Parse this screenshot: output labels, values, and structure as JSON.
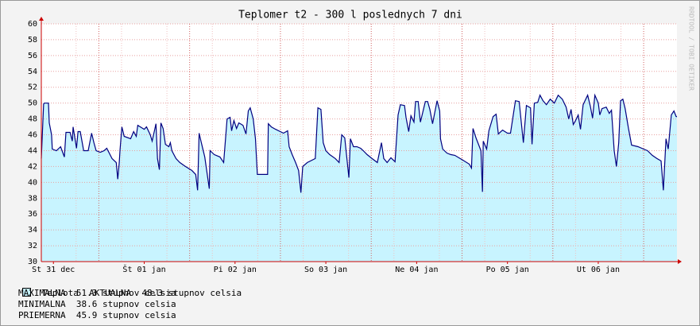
{
  "chart_data": {
    "type": "area",
    "title": "Teplomer t2 - 300 l poslednych 7 dni",
    "watermark": "RRDTOOL / TOBI OETIKER",
    "xlim": [
      0,
      168
    ],
    "xticks": [
      {
        "value": 3.2,
        "label": "St 31 dec"
      },
      {
        "value": 27.2,
        "label": "Št 01 jan"
      },
      {
        "value": 51.2,
        "label": "Pi 02 jan"
      },
      {
        "value": 75.2,
        "label": "So 03 jan"
      },
      {
        "value": 99.2,
        "label": "Ne 04 jan"
      },
      {
        "value": 123.2,
        "label": "Po 05 jan"
      },
      {
        "value": 147.2,
        "label": "Ut 06 jan"
      }
    ],
    "ylim": [
      30,
      60
    ],
    "yticks": [
      30,
      32,
      34,
      36,
      38,
      40,
      42,
      44,
      46,
      48,
      50,
      52,
      54,
      56,
      58,
      60
    ],
    "grid": true,
    "series": [
      {
        "name": "Teplota",
        "color": "#000080",
        "fill": "#c8f4ff",
        "x": [
          0,
          0.6,
          0.8,
          1.9,
          2.1,
          2.7,
          2.9,
          4.0,
          5.1,
          6.1,
          6.5,
          7.6,
          8.2,
          8.4,
          9.3,
          9.7,
          10.3,
          11.2,
          12.4,
          13.3,
          13.9,
          14.5,
          15.6,
          16.6,
          17.3,
          18.7,
          19.8,
          20.2,
          20.6,
          20.8,
          21.3,
          21.9,
          23.6,
          24.4,
          25.1,
          25.5,
          27.2,
          27.8,
          28.8,
          29.3,
          30.3,
          30.7,
          31.2,
          31.6,
          32.2,
          32.8,
          33.7,
          34.1,
          34.5,
          35.6,
          36.6,
          38.1,
          39.8,
          40.8,
          41.3,
          41.7,
          42.3,
          43.2,
          44.4,
          44.6,
          45.7,
          47.2,
          48.2,
          49.1,
          49.9,
          50.3,
          50.9,
          51.6,
          52.2,
          52.6,
          53.3,
          54.1,
          54.7,
          55.2,
          56.0,
          56.6,
          57.1,
          58.7,
          59.8,
          60.0,
          60.8,
          61.9,
          64.0,
          65.1,
          65.5,
          66.3,
          67.2,
          68.0,
          68.6,
          69.1,
          70.3,
          72.4,
          73.1,
          73.9,
          74.5,
          75.2,
          76.2,
          77.7,
          78.7,
          79.4,
          80.2,
          81.3,
          81.7,
          82.5,
          83.4,
          84.4,
          85.1,
          86.1,
          87.4,
          88.8,
          89.9,
          90.5,
          91.4,
          92.4,
          93.5,
          94.3,
          94.9,
          96.0,
          96.4,
          97.1,
          97.7,
          98.5,
          98.9,
          99.6,
          100.2,
          100.8,
          101.5,
          102.1,
          102.7,
          103.4,
          104.6,
          105.3,
          105.5,
          106.1,
          107.2,
          108.2,
          109.3,
          111.4,
          113.1,
          113.7,
          114.1,
          114.9,
          116.2,
          116.6,
          116.8,
          117.7,
          118.3,
          119.4,
          120.2,
          120.8,
          121.9,
          123.2,
          124.0,
          125.3,
          126.3,
          127.4,
          128.2,
          129.3,
          129.7,
          130.3,
          131.2,
          131.8,
          132.6,
          133.5,
          134.5,
          135.6,
          136.6,
          137.7,
          138.7,
          139.4,
          140.0,
          140.6,
          141.1,
          141.9,
          142.5,
          143.2,
          144.4,
          145.1,
          145.7,
          146.3,
          147.2,
          147.6,
          148.2,
          149.3,
          150.1,
          150.7,
          151.4,
          152.0,
          152.6,
          153.1,
          153.7,
          154.3,
          155.2,
          156.0,
          157.7,
          159.2,
          160.2,
          161.5,
          162.7,
          163.8,
          164.4,
          165.1,
          165.7,
          166.5,
          167.2,
          167.8,
          168
        ],
        "values": [
          43,
          49.9,
          50,
          50,
          47.5,
          46,
          44.2,
          44,
          44.5,
          43.2,
          46.3,
          46.3,
          45.2,
          47,
          44.3,
          46.4,
          46.4,
          44,
          44,
          46.2,
          45,
          44,
          43.8,
          44,
          44.3,
          43,
          42.5,
          40.4,
          42.5,
          44,
          47,
          45.8,
          45.5,
          46.4,
          45.8,
          47.2,
          46.7,
          47,
          46,
          45.2,
          47.4,
          43,
          41.6,
          47.5,
          46.8,
          44.8,
          44.5,
          45,
          44,
          43,
          42.5,
          42,
          41.5,
          41,
          39,
          46.2,
          45,
          43.2,
          39.2,
          44,
          43.5,
          43.2,
          42.5,
          48,
          48.2,
          46.5,
          47.8,
          46.8,
          47.5,
          47.4,
          47.2,
          46.1,
          49,
          49.4,
          48,
          45.5,
          41,
          41,
          41,
          47.4,
          47,
          46.7,
          46.2,
          46.5,
          44.5,
          43.5,
          42.5,
          41.5,
          38.7,
          42,
          42.5,
          43,
          49.4,
          49.2,
          45,
          44,
          43.5,
          43,
          42.5,
          46,
          45.6,
          40.6,
          45.5,
          44.5,
          44.5,
          44.3,
          44,
          43.5,
          43,
          42.5,
          45,
          43,
          42.5,
          43.1,
          42.6,
          48.5,
          49.8,
          49.7,
          48.2,
          46.4,
          48.4,
          47.6,
          50.2,
          50.2,
          47.6,
          48.8,
          50.2,
          50.2,
          49.2,
          47.4,
          50.3,
          49,
          45.5,
          44.2,
          43.7,
          43.5,
          43.4,
          42.8,
          42.3,
          41.8,
          46.8,
          45.6,
          44,
          38.8,
          45.2,
          44.2,
          46.5,
          48.3,
          48.6,
          46.1,
          46.6,
          46.2,
          46.2,
          50.3,
          50.2,
          45,
          49.7,
          49.4,
          44.8,
          50,
          50.1,
          51,
          50.3,
          49.8,
          50.5,
          50,
          51,
          50.5,
          49.5,
          48,
          49.2,
          47.3,
          47.7,
          48.5,
          46.7,
          49.8,
          51,
          49.6,
          48.1,
          51,
          50,
          48.5,
          49.3,
          49.5,
          48.7,
          49.1,
          44,
          42,
          45,
          50.3,
          50.5,
          49.3,
          46.8,
          44.7,
          44.5,
          44.2,
          44,
          43.4,
          43,
          42.7,
          39,
          45.5,
          44.2,
          48.5,
          49,
          48.3,
          48.3
        ]
      }
    ],
    "legend_lines": [
      "AKTUALNA  48.3 stupnov celsia",
      "MAXIMALNA  51.3 stupnov celsia",
      "MINIMALNA  38.6 stupnov celsia",
      "PRIEMERNA  45.9 stupnov celsia"
    ]
  }
}
